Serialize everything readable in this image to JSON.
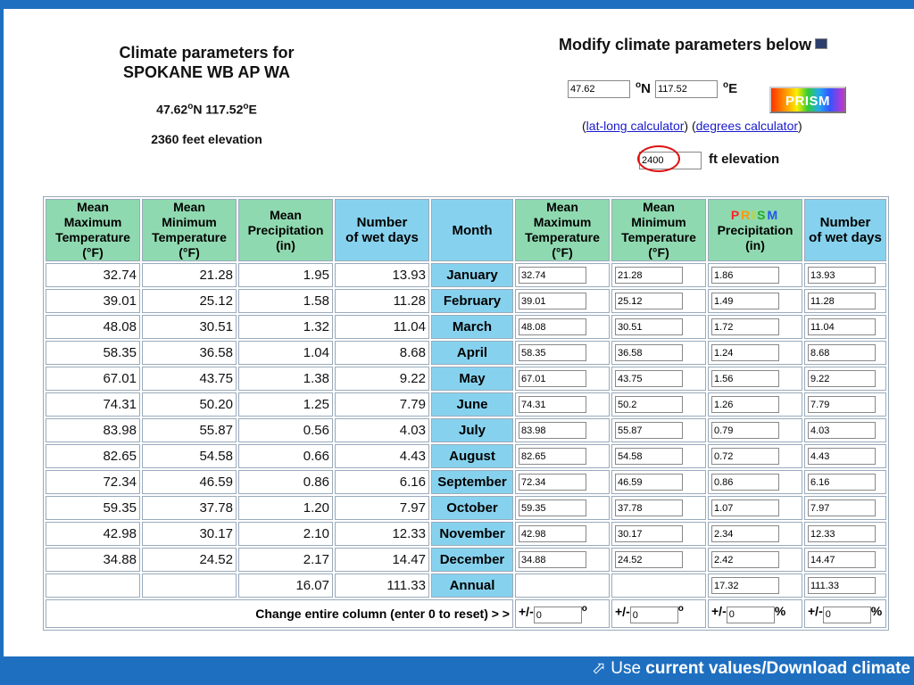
{
  "header_left": {
    "title_line1": "Climate parameters for",
    "title_line2": "SPOKANE WB AP WA",
    "lat": "47.62",
    "lat_unit": "N",
    "lon": "117.52",
    "lon_unit": "E",
    "elevation": "2360 feet elevation"
  },
  "header_right": {
    "title": "Modify climate parameters below",
    "lat_value": "47.62",
    "lat_unit": "N",
    "lon_value": "117.52",
    "lon_unit": "E",
    "prism_button": "PRISM",
    "latlong_link": "lat-long calculator",
    "degrees_link": "degrees calculator",
    "elevation_value": "2400",
    "elevation_label": "ft elevation"
  },
  "table": {
    "headers": {
      "max_temp": [
        "Mean",
        "Maximum",
        "Temperature",
        "(°F)"
      ],
      "min_temp": [
        "Mean",
        "Minimum",
        "Temperature",
        "(°F)"
      ],
      "precip": [
        "Mean",
        "Precipitation",
        "(in)"
      ],
      "wet_days": [
        "Number",
        "of wet days"
      ],
      "month": "Month",
      "prism_letters": [
        "P",
        "R",
        "I",
        "S",
        "M"
      ],
      "prism_precip": [
        "Precipitation",
        "(in)"
      ]
    },
    "rows": [
      {
        "month": "January",
        "max": "32.74",
        "min": "21.28",
        "precip": "1.95",
        "wet": "13.93",
        "imax": "32.74",
        "imin": "21.28",
        "iprecip": "1.86",
        "iwet": "13.93"
      },
      {
        "month": "February",
        "max": "39.01",
        "min": "25.12",
        "precip": "1.58",
        "wet": "11.28",
        "imax": "39.01",
        "imin": "25.12",
        "iprecip": "1.49",
        "iwet": "11.28"
      },
      {
        "month": "March",
        "max": "48.08",
        "min": "30.51",
        "precip": "1.32",
        "wet": "11.04",
        "imax": "48.08",
        "imin": "30.51",
        "iprecip": "1.72",
        "iwet": "11.04"
      },
      {
        "month": "April",
        "max": "58.35",
        "min": "36.58",
        "precip": "1.04",
        "wet": "8.68",
        "imax": "58.35",
        "imin": "36.58",
        "iprecip": "1.24",
        "iwet": "8.68"
      },
      {
        "month": "May",
        "max": "67.01",
        "min": "43.75",
        "precip": "1.38",
        "wet": "9.22",
        "imax": "67.01",
        "imin": "43.75",
        "iprecip": "1.56",
        "iwet": "9.22"
      },
      {
        "month": "June",
        "max": "74.31",
        "min": "50.20",
        "precip": "1.25",
        "wet": "7.79",
        "imax": "74.31",
        "imin": "50.2",
        "iprecip": "1.26",
        "iwet": "7.79"
      },
      {
        "month": "July",
        "max": "83.98",
        "min": "55.87",
        "precip": "0.56",
        "wet": "4.03",
        "imax": "83.98",
        "imin": "55.87",
        "iprecip": "0.79",
        "iwet": "4.03"
      },
      {
        "month": "August",
        "max": "82.65",
        "min": "54.58",
        "precip": "0.66",
        "wet": "4.43",
        "imax": "82.65",
        "imin": "54.58",
        "iprecip": "0.72",
        "iwet": "4.43"
      },
      {
        "month": "September",
        "max": "72.34",
        "min": "46.59",
        "precip": "0.86",
        "wet": "6.16",
        "imax": "72.34",
        "imin": "46.59",
        "iprecip": "0.86",
        "iwet": "6.16"
      },
      {
        "month": "October",
        "max": "59.35",
        "min": "37.78",
        "precip": "1.20",
        "wet": "7.97",
        "imax": "59.35",
        "imin": "37.78",
        "iprecip": "1.07",
        "iwet": "7.97"
      },
      {
        "month": "November",
        "max": "42.98",
        "min": "30.17",
        "precip": "2.10",
        "wet": "12.33",
        "imax": "42.98",
        "imin": "30.17",
        "iprecip": "2.34",
        "iwet": "12.33"
      },
      {
        "month": "December",
        "max": "34.88",
        "min": "24.52",
        "precip": "2.17",
        "wet": "14.47",
        "imax": "34.88",
        "imin": "24.52",
        "iprecip": "2.42",
        "iwet": "14.47"
      }
    ],
    "annual": {
      "month": "Annual",
      "precip": "16.07",
      "wet": "111.33",
      "iprecip": "17.32",
      "iwet": "111.33"
    },
    "change_label": "Change entire column (enter 0 to reset) > >",
    "pm_label": "+/-",
    "pm_values": [
      "0",
      "0",
      "0",
      "0"
    ],
    "deg_symbol": "o",
    "pct_symbol": "%"
  },
  "footer": {
    "prefix": "Use",
    "link": "current values/Download climate"
  },
  "colors": {
    "background_blue": "#1f6fc0",
    "header_green": "#8fd9b0",
    "header_blue": "#86d2ee",
    "prism_letters": [
      "#ff2222",
      "#ff9900",
      "#ddcc00",
      "#22aa22",
      "#2255ee"
    ],
    "ellipse_red": "#dd1111"
  },
  "icons": [
    "modify-icon",
    "external-link-icon"
  ]
}
